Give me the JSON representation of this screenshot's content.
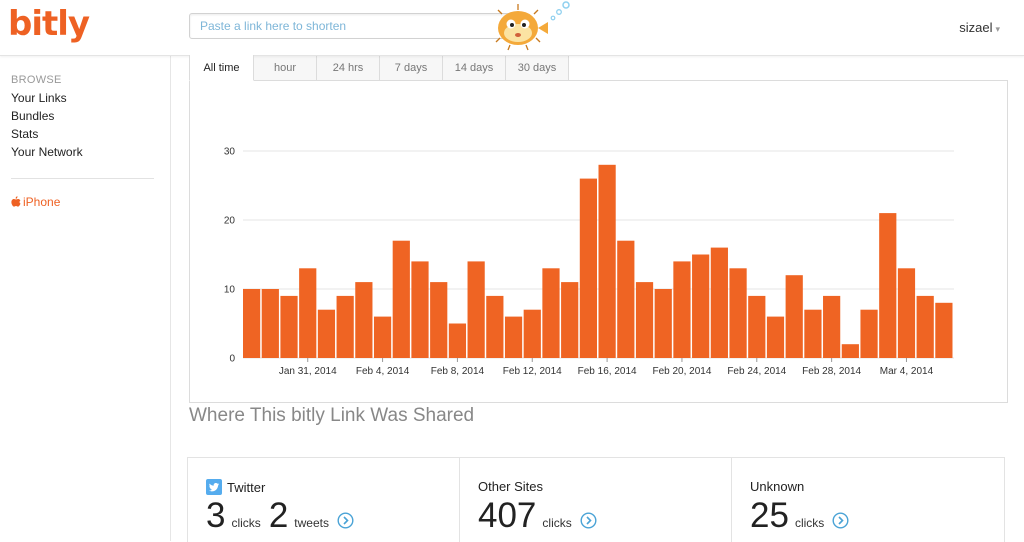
{
  "header": {
    "logo": "bitly",
    "search_placeholder": "Paste a link here to shorten",
    "username": "sizael",
    "caret": "▾"
  },
  "sidebar": {
    "heading": "BROWSE",
    "items": [
      "Your Links",
      "Bundles",
      "Stats",
      "Your Network"
    ],
    "iphone_label": "iPhone"
  },
  "tabs": [
    "All time",
    "hour",
    "24 hrs",
    "7 days",
    "14 days",
    "30 days"
  ],
  "active_tab": "All time",
  "colors": {
    "accent": "#ee6123",
    "bar": "#ef6423",
    "twitter": "#55acee",
    "link": "#4aa3d6"
  },
  "chart_data": {
    "type": "bar",
    "values": [
      10,
      10,
      9,
      13,
      7,
      9,
      11,
      6,
      17,
      14,
      11,
      5,
      14,
      9,
      6,
      7,
      13,
      11,
      26,
      28,
      17,
      11,
      10,
      14,
      15,
      16,
      13,
      9,
      6,
      12,
      7,
      9,
      2,
      7,
      21,
      13,
      9,
      8
    ],
    "ylim": [
      0,
      30
    ],
    "yticks": [
      0,
      10,
      20,
      30
    ],
    "xtick_labels": [
      "Jan 31, 2014",
      "Feb 4, 2014",
      "Feb 8, 2014",
      "Feb 12, 2014",
      "Feb 16, 2014",
      "Feb 20, 2014",
      "Feb 24, 2014",
      "Feb 28, 2014",
      "Mar 4, 2014"
    ],
    "xtick_indices": [
      3,
      7,
      11,
      15,
      19,
      23,
      27,
      31,
      35
    ],
    "grid": true
  },
  "shared": {
    "title": "Where This bitly Link Was Shared",
    "twitter": {
      "label": "Twitter",
      "clicks": "3",
      "clicks_label": "clicks",
      "tweets": "2",
      "tweets_label": "tweets"
    },
    "other": {
      "label": "Other Sites",
      "clicks": "407",
      "clicks_label": "clicks"
    },
    "unknown": {
      "label": "Unknown",
      "clicks": "25",
      "clicks_label": "clicks"
    }
  }
}
